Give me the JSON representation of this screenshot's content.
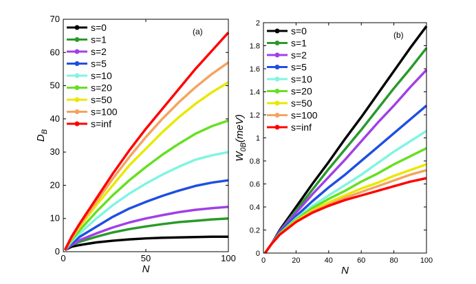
{
  "chart_data": [
    {
      "type": "line",
      "annotation": "(a)",
      "xlabel": "N",
      "ylabel": "D",
      "ylabel_sub": "B",
      "x": [
        1,
        5,
        10,
        20,
        30,
        40,
        50,
        60,
        70,
        80,
        90,
        100
      ],
      "xlim": [
        0,
        100
      ],
      "xticks": [
        0,
        50,
        100
      ],
      "ylim": [
        0,
        70
      ],
      "yticks": [
        0,
        10,
        20,
        30,
        40,
        50,
        60,
        70
      ],
      "legend": "upper left",
      "series": [
        {
          "name": "s=0",
          "color": "#000000",
          "values": [
            0.5,
            1.5,
            2,
            2.8,
            3.3,
            3.7,
            4,
            4.2,
            4.3,
            4.4,
            4.5,
            4.5
          ]
        },
        {
          "name": "s=1",
          "color": "#2a9a2a",
          "values": [
            0.5,
            2,
            3,
            4.5,
            5.8,
            6.8,
            7.6,
            8.3,
            8.9,
            9.3,
            9.7,
            10
          ]
        },
        {
          "name": "s=2",
          "color": "#a040e8",
          "values": [
            0.5,
            2,
            3.5,
            5.5,
            7.3,
            8.8,
            10,
            11,
            11.9,
            12.6,
            13.1,
            13.5
          ]
        },
        {
          "name": "s=5",
          "color": "#1f4fe0",
          "values": [
            0.5,
            2.5,
            4.5,
            7.5,
            10.5,
            13,
            15,
            16.8,
            18.4,
            19.8,
            20.8,
            21.5
          ]
        },
        {
          "name": "s=10",
          "color": "#80f5e0",
          "values": [
            0.5,
            3,
            5.5,
            10,
            14,
            17.5,
            20.5,
            23.2,
            25.6,
            27.7,
            29,
            30
          ]
        },
        {
          "name": "s=20",
          "color": "#66e020",
          "values": [
            0.5,
            3.5,
            6.5,
            12,
            17,
            21.5,
            25.5,
            29.2,
            32.5,
            35.5,
            37.8,
            39.5
          ]
        },
        {
          "name": "s=50",
          "color": "#e8e800",
          "values": [
            0.5,
            4,
            7.5,
            14,
            20,
            26,
            31,
            36,
            40.5,
            44.5,
            48,
            51
          ]
        },
        {
          "name": "s=100",
          "color": "#f4a460",
          "values": [
            0.5,
            4,
            8,
            15,
            22,
            28.5,
            34.5,
            40,
            45,
            49.5,
            53.5,
            57
          ]
        },
        {
          "name": "s=inf",
          "color": "#ff0000",
          "values": [
            0.5,
            4.5,
            8.5,
            16,
            23.5,
            30.5,
            37,
            43,
            49,
            55,
            60.5,
            66
          ]
        }
      ]
    },
    {
      "type": "line",
      "annotation": "(b)",
      "xlabel": "N",
      "ylabel": "W",
      "ylabel_sub": "0B",
      "ylabel_unit": "(meV)",
      "x": [
        1,
        5,
        10,
        20,
        30,
        40,
        50,
        60,
        70,
        80,
        90,
        100
      ],
      "xlim": [
        0,
        100
      ],
      "xticks": [
        0,
        20,
        40,
        60,
        80,
        100
      ],
      "ylim": [
        0,
        2
      ],
      "yticks": [
        0,
        0.2,
        0.4,
        0.6,
        0.8,
        1,
        1.2,
        1.4,
        1.6,
        1.8,
        2
      ],
      "legend": "upper left",
      "series": [
        {
          "name": "s=0",
          "color": "#000000",
          "values": [
            0,
            0.08,
            0.2,
            0.4,
            0.6,
            0.79,
            0.99,
            1.18,
            1.38,
            1.58,
            1.78,
            1.97
          ]
        },
        {
          "name": "s=1",
          "color": "#2a9a2a",
          "values": [
            0,
            0.08,
            0.19,
            0.37,
            0.55,
            0.73,
            0.9,
            1.07,
            1.25,
            1.43,
            1.6,
            1.78
          ]
        },
        {
          "name": "s=2",
          "color": "#a040e8",
          "values": [
            0,
            0.08,
            0.19,
            0.35,
            0.51,
            0.66,
            0.81,
            0.97,
            1.13,
            1.28,
            1.44,
            1.59
          ]
        },
        {
          "name": "s=5",
          "color": "#1f4fe0",
          "values": [
            0,
            0.08,
            0.18,
            0.32,
            0.45,
            0.57,
            0.68,
            0.8,
            0.92,
            1.04,
            1.16,
            1.28
          ]
        },
        {
          "name": "s=10",
          "color": "#80f5e0",
          "values": [
            0,
            0.08,
            0.17,
            0.3,
            0.41,
            0.5,
            0.59,
            0.68,
            0.78,
            0.88,
            0.97,
            1.06
          ]
        },
        {
          "name": "s=20",
          "color": "#66e020",
          "values": [
            0,
            0.08,
            0.17,
            0.29,
            0.39,
            0.47,
            0.54,
            0.62,
            0.69,
            0.77,
            0.84,
            0.91
          ]
        },
        {
          "name": "s=50",
          "color": "#e8e800",
          "values": [
            0,
            0.08,
            0.16,
            0.28,
            0.37,
            0.44,
            0.5,
            0.56,
            0.61,
            0.67,
            0.72,
            0.77
          ]
        },
        {
          "name": "s=100",
          "color": "#f4a460",
          "values": [
            0,
            0.08,
            0.16,
            0.27,
            0.36,
            0.42,
            0.48,
            0.53,
            0.58,
            0.63,
            0.68,
            0.72
          ]
        },
        {
          "name": "s=inf",
          "color": "#ff0000",
          "values": [
            0,
            0.08,
            0.16,
            0.27,
            0.35,
            0.41,
            0.46,
            0.5,
            0.54,
            0.58,
            0.62,
            0.65
          ]
        }
      ]
    }
  ]
}
